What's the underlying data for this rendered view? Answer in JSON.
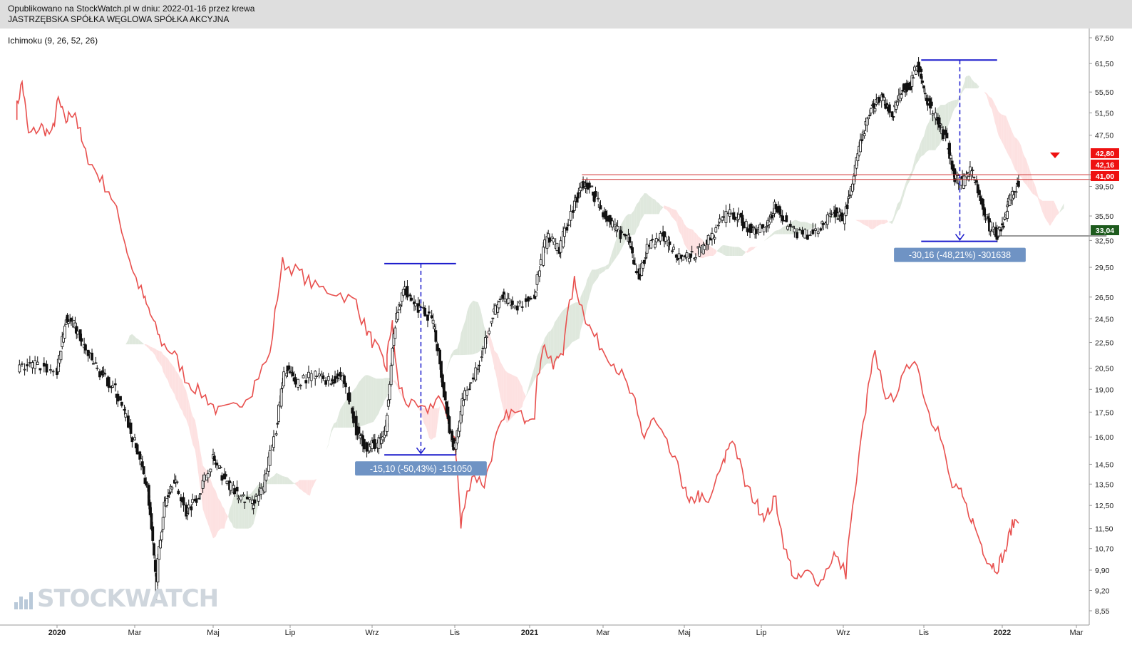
{
  "header": {
    "line1": "Opublikowano na StockWatch.pl w dniu: 2022-01-16 przez krewa",
    "line2": "JASTRZĘBSKA SPÓŁKA WĘGLOWA SPÓŁKA AKCYJNA"
  },
  "indicator_label": "Ichimoku (9, 26, 52, 26)",
  "watermark": "STOCKWATCH",
  "colors": {
    "price_line": "#111111",
    "lagging_span": "#e8504e",
    "cloud_bull": "#dfe8dd",
    "cloud_bear": "#fde1e1",
    "measure": "#1a1acc",
    "measure_label_bg": "#6f93c4",
    "resistance": "#d03030",
    "badge_red": "#ee1111",
    "badge_green": "#1e5b1e",
    "arrow_down": "#ee1111"
  },
  "chart_data": {
    "type": "line",
    "title": "",
    "y_scale": "log",
    "ylim": [
      8.2,
      70
    ],
    "y_ticks": [
      "67,50",
      "61,50",
      "55,50",
      "51,50",
      "47,50",
      "42,80",
      "42,16",
      "41,00",
      "39,50",
      "35,50",
      "33,04",
      "32,50",
      "29,50",
      "26,50",
      "24,50",
      "22,50",
      "20,50",
      "19,00",
      "17,50",
      "16,00",
      "14,50",
      "13,50",
      "12,50",
      "11,50",
      "10,70",
      "9,90",
      "9,20",
      "8,55"
    ],
    "y_tick_values": [
      67.5,
      61.5,
      55.5,
      51.5,
      47.5,
      null,
      null,
      null,
      39.5,
      35.5,
      null,
      32.5,
      29.5,
      26.5,
      24.5,
      22.5,
      20.5,
      19.0,
      17.5,
      16.0,
      14.5,
      13.5,
      12.5,
      11.5,
      10.7,
      9.9,
      9.2,
      8.55
    ],
    "x_ticks": [
      {
        "label": "2020",
        "bold": true,
        "date": "2020-01-01"
      },
      {
        "label": "Mar",
        "bold": false,
        "date": "2020-03-01"
      },
      {
        "label": "Maj",
        "bold": false,
        "date": "2020-05-01"
      },
      {
        "label": "Lip",
        "bold": false,
        "date": "2020-07-01"
      },
      {
        "label": "Wrz",
        "bold": false,
        "date": "2020-09-01"
      },
      {
        "label": "Lis",
        "bold": false,
        "date": "2020-11-01"
      },
      {
        "label": "2021",
        "bold": true,
        "date": "2021-01-01"
      },
      {
        "label": "Mar",
        "bold": false,
        "date": "2021-03-01"
      },
      {
        "label": "Maj",
        "bold": false,
        "date": "2021-05-01"
      },
      {
        "label": "Lip",
        "bold": false,
        "date": "2021-07-01"
      },
      {
        "label": "Wrz",
        "bold": false,
        "date": "2021-09-01"
      },
      {
        "label": "Lis",
        "bold": false,
        "date": "2021-11-01"
      },
      {
        "label": "2022",
        "bold": true,
        "date": "2022-01-01"
      },
      {
        "label": "Mar",
        "bold": false,
        "date": "2022-03-01"
      }
    ],
    "series": [
      {
        "kind": "price",
        "points": [
          [
            "2019-12-01",
            20.5
          ],
          [
            "2019-12-15",
            20.8
          ],
          [
            "2020-01-01",
            20.2
          ],
          [
            "2020-01-08",
            24.5
          ],
          [
            "2020-01-15",
            23.8
          ],
          [
            "2020-01-25",
            21.5
          ],
          [
            "2020-02-05",
            20.0
          ],
          [
            "2020-02-15",
            19.0
          ],
          [
            "2020-02-25",
            16.8
          ],
          [
            "2020-03-05",
            14.8
          ],
          [
            "2020-03-12",
            13.0
          ],
          [
            "2020-03-18",
            9.2
          ],
          [
            "2020-03-24",
            12.5
          ],
          [
            "2020-04-01",
            13.8
          ],
          [
            "2020-04-10",
            12.2
          ],
          [
            "2020-04-20",
            13.0
          ],
          [
            "2020-05-01",
            14.8
          ],
          [
            "2020-05-10",
            13.8
          ],
          [
            "2020-05-20",
            13.0
          ],
          [
            "2020-06-01",
            12.6
          ],
          [
            "2020-06-10",
            13.3
          ],
          [
            "2020-06-20",
            16.5
          ],
          [
            "2020-06-28",
            20.5
          ],
          [
            "2020-07-05",
            19.5
          ],
          [
            "2020-07-20",
            20.0
          ],
          [
            "2020-08-01",
            19.6
          ],
          [
            "2020-08-10",
            20.0
          ],
          [
            "2020-08-20",
            16.4
          ],
          [
            "2020-08-28",
            15.5
          ],
          [
            "2020-09-05",
            15.6
          ],
          [
            "2020-09-12",
            16.5
          ],
          [
            "2020-09-18",
            24.0
          ],
          [
            "2020-09-25",
            27.5
          ],
          [
            "2020-10-05",
            25.5
          ],
          [
            "2020-10-15",
            24.5
          ],
          [
            "2020-10-22",
            20.5
          ],
          [
            "2020-10-28",
            16.5
          ],
          [
            "2020-11-02",
            15.2
          ],
          [
            "2020-11-08",
            18.5
          ],
          [
            "2020-11-20",
            20.5
          ],
          [
            "2020-12-01",
            24.5
          ],
          [
            "2020-12-10",
            26.5
          ],
          [
            "2020-12-20",
            25.5
          ],
          [
            "2021-01-05",
            26.5
          ],
          [
            "2021-01-15",
            33.0
          ],
          [
            "2021-01-25",
            31.5
          ],
          [
            "2021-02-05",
            36.5
          ],
          [
            "2021-02-12",
            40.0
          ],
          [
            "2021-02-20",
            39.0
          ],
          [
            "2021-03-01",
            36.0
          ],
          [
            "2021-03-10",
            34.0
          ],
          [
            "2021-03-20",
            32.5
          ],
          [
            "2021-03-28",
            28.5
          ],
          [
            "2021-04-05",
            32.0
          ],
          [
            "2021-04-15",
            33.0
          ],
          [
            "2021-04-25",
            31.0
          ],
          [
            "2021-05-05",
            30.5
          ],
          [
            "2021-05-15",
            31.5
          ],
          [
            "2021-05-25",
            33.5
          ],
          [
            "2021-06-05",
            36.0
          ],
          [
            "2021-06-15",
            35.0
          ],
          [
            "2021-06-25",
            33.5
          ],
          [
            "2021-07-05",
            34.5
          ],
          [
            "2021-07-12",
            37.0
          ],
          [
            "2021-07-20",
            34.5
          ],
          [
            "2021-08-01",
            33.0
          ],
          [
            "2021-08-15",
            34.0
          ],
          [
            "2021-08-25",
            36.0
          ],
          [
            "2021-09-01",
            35.0
          ],
          [
            "2021-09-08",
            40.0
          ],
          [
            "2021-09-15",
            47.0
          ],
          [
            "2021-09-22",
            52.0
          ],
          [
            "2021-09-30",
            55.0
          ],
          [
            "2021-10-08",
            51.0
          ],
          [
            "2021-10-15",
            56.0
          ],
          [
            "2021-10-22",
            57.0
          ],
          [
            "2021-10-28",
            61.5
          ],
          [
            "2021-11-02",
            55.0
          ],
          [
            "2021-11-10",
            51.0
          ],
          [
            "2021-11-18",
            47.0
          ],
          [
            "2021-11-25",
            41.0
          ],
          [
            "2021-12-01",
            40.0
          ],
          [
            "2021-12-08",
            42.0
          ],
          [
            "2021-12-15",
            37.5
          ],
          [
            "2021-12-22",
            34.5
          ],
          [
            "2021-12-28",
            33.0
          ],
          [
            "2022-01-03",
            35.0
          ],
          [
            "2022-01-08",
            38.0
          ],
          [
            "2022-01-14",
            40.0
          ]
        ]
      },
      {
        "kind": "lagging",
        "points": [
          [
            "2019-12-01",
            51.5
          ],
          [
            "2019-12-05",
            57.5
          ],
          [
            "2019-12-10",
            47.5
          ],
          [
            "2019-12-20",
            49.0
          ],
          [
            "2019-12-28",
            47.5
          ],
          [
            "2020-01-02",
            54.0
          ],
          [
            "2020-01-08",
            50.0
          ],
          [
            "2020-01-15",
            52.0
          ],
          [
            "2020-01-22",
            45.0
          ],
          [
            "2020-01-30",
            42.0
          ],
          [
            "2020-02-10",
            39.0
          ],
          [
            "2020-02-20",
            34.0
          ],
          [
            "2020-02-28",
            29.5
          ],
          [
            "2020-03-08",
            26.5
          ],
          [
            "2020-03-15",
            24.5
          ],
          [
            "2020-03-22",
            22.5
          ],
          [
            "2020-04-01",
            21.5
          ],
          [
            "2020-04-12",
            19.5
          ],
          [
            "2020-04-25",
            18.5
          ],
          [
            "2020-05-05",
            17.5
          ],
          [
            "2020-05-20",
            17.8
          ],
          [
            "2020-06-01",
            19.0
          ],
          [
            "2020-06-15",
            21.5
          ],
          [
            "2020-06-25",
            30.0
          ],
          [
            "2020-07-08",
            29.0
          ],
          [
            "2020-07-20",
            27.5
          ],
          [
            "2020-08-05",
            27.0
          ],
          [
            "2020-08-20",
            26.0
          ],
          [
            "2020-08-28",
            23.5
          ],
          [
            "2020-09-05",
            22.0
          ],
          [
            "2020-09-12",
            20.5
          ],
          [
            "2020-09-16",
            24.5
          ],
          [
            "2020-09-20",
            19.5
          ],
          [
            "2020-09-28",
            18.0
          ],
          [
            "2020-10-10",
            17.5
          ],
          [
            "2020-10-20",
            18.5
          ],
          [
            "2020-11-01",
            16.0
          ],
          [
            "2020-11-06",
            11.5
          ],
          [
            "2020-11-15",
            14.0
          ],
          [
            "2020-11-25",
            13.5
          ],
          [
            "2020-12-05",
            16.0
          ],
          [
            "2020-12-15",
            17.5
          ],
          [
            "2020-12-28",
            17.2
          ],
          [
            "2021-01-05",
            17.5
          ],
          [
            "2021-01-12",
            22.5
          ],
          [
            "2021-01-20",
            20.5
          ],
          [
            "2021-01-28",
            22.0
          ],
          [
            "2021-02-06",
            28.0
          ],
          [
            "2021-02-14",
            25.0
          ],
          [
            "2021-02-22",
            23.0
          ],
          [
            "2021-03-05",
            21.5
          ],
          [
            "2021-03-15",
            20.0
          ],
          [
            "2021-03-25",
            18.0
          ],
          [
            "2021-04-01",
            16.0
          ],
          [
            "2021-04-08",
            17.0
          ],
          [
            "2021-04-18",
            15.5
          ],
          [
            "2021-04-28",
            14.0
          ],
          [
            "2021-05-05",
            12.5
          ],
          [
            "2021-05-12",
            13.0
          ],
          [
            "2021-05-20",
            12.5
          ],
          [
            "2021-06-01",
            14.5
          ],
          [
            "2021-06-08",
            16.0
          ],
          [
            "2021-06-18",
            13.5
          ],
          [
            "2021-06-28",
            12.5
          ],
          [
            "2021-07-05",
            12.0
          ],
          [
            "2021-07-12",
            12.8
          ],
          [
            "2021-07-20",
            10.5
          ],
          [
            "2021-07-28",
            9.5
          ],
          [
            "2021-08-05",
            9.8
          ],
          [
            "2021-08-15",
            9.5
          ],
          [
            "2021-08-25",
            10.5
          ],
          [
            "2021-09-03",
            9.8
          ],
          [
            "2021-09-10",
            13.0
          ],
          [
            "2021-09-18",
            17.5
          ],
          [
            "2021-09-25",
            21.5
          ],
          [
            "2021-10-05",
            18.0
          ],
          [
            "2021-10-15",
            19.5
          ],
          [
            "2021-10-25",
            21.5
          ],
          [
            "2021-11-05",
            17.5
          ],
          [
            "2021-11-12",
            16.5
          ],
          [
            "2021-11-22",
            13.5
          ],
          [
            "2021-11-30",
            13.0
          ],
          [
            "2021-12-08",
            12.0
          ],
          [
            "2021-12-15",
            11.0
          ],
          [
            "2021-12-22",
            10.2
          ],
          [
            "2021-12-28",
            10.0
          ],
          [
            "2022-01-03",
            10.5
          ],
          [
            "2022-01-08",
            11.5
          ],
          [
            "2022-01-14",
            12.0
          ]
        ]
      }
    ],
    "annotations": [
      {
        "kind": "measure",
        "label": "-15,10 (-50,43%) -151050",
        "from_date": "2020-09-10",
        "to_date": "2020-11-02",
        "high": 29.9,
        "low": 15.0,
        "mid_date": "2020-10-07"
      },
      {
        "kind": "measure",
        "label": "-30,16 (-48,21%) -301638",
        "from_date": "2021-10-30",
        "to_date": "2021-12-28",
        "high": 62.3,
        "low": 32.4,
        "mid_date": "2021-11-29"
      },
      {
        "kind": "hline",
        "value": 41.2,
        "from_date": "2021-02-12",
        "to_date": "2022-03-25"
      },
      {
        "kind": "hline",
        "value": 40.5,
        "from_date": "2021-02-12",
        "to_date": "2022-03-25"
      },
      {
        "kind": "hline",
        "value": 33.04,
        "from_date": "2021-12-28",
        "to_date": "2022-03-25"
      }
    ],
    "price_badges": [
      {
        "label": "42,80",
        "value": 42.8,
        "color": "#ee1111"
      },
      {
        "label": "42,16",
        "value": 42.16,
        "color": "#ee1111"
      },
      {
        "label": "41,00",
        "value": 41.0,
        "color": "#ee1111"
      },
      {
        "label": "33,04",
        "value": 33.04,
        "color": "#1e5b1e"
      }
    ]
  }
}
